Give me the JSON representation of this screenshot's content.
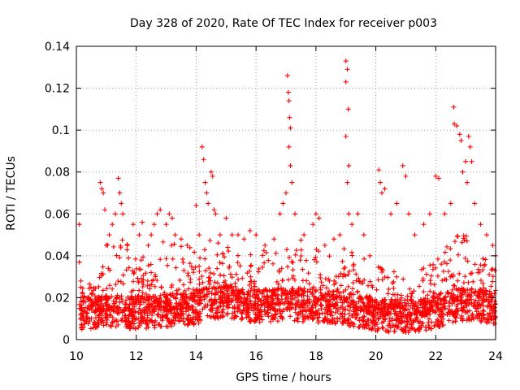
{
  "chart_data": {
    "type": "scatter",
    "title": "Day 328 of 2020, Rate Of TEC Index for receiver p003",
    "xlabel": "GPS time / hours",
    "ylabel": "ROTI / TECUs",
    "xlim": [
      10,
      24
    ],
    "ylim": [
      0,
      0.14
    ],
    "xticks": [
      10,
      12,
      14,
      16,
      18,
      20,
      22,
      24
    ],
    "yticks": [
      0,
      0.02,
      0.04,
      0.06,
      0.08,
      0.1,
      0.12,
      0.14
    ],
    "xtick_labels": [
      "10",
      "12",
      "14",
      "16",
      "18",
      "20",
      "22",
      "24"
    ],
    "ytick_labels": [
      "0",
      "0.02",
      "0.04",
      "0.06",
      "0.08",
      "0.1",
      "0.12",
      "0.14"
    ],
    "grid": true,
    "marker": "+",
    "color": "#ff0000",
    "series": [
      {
        "name": "ROTI",
        "points": [
          [
            10.1,
            0.055
          ],
          [
            10.1,
            0.037
          ],
          [
            10.15,
            0.028
          ],
          [
            10.2,
            0.022
          ],
          [
            10.3,
            0.018
          ],
          [
            10.4,
            0.015
          ],
          [
            10.8,
            0.075
          ],
          [
            10.85,
            0.072
          ],
          [
            10.9,
            0.07
          ],
          [
            10.95,
            0.062
          ],
          [
            11.0,
            0.045
          ],
          [
            11.1,
            0.05
          ],
          [
            11.2,
            0.055
          ],
          [
            11.3,
            0.06
          ],
          [
            11.4,
            0.077
          ],
          [
            11.45,
            0.07
          ],
          [
            11.5,
            0.065
          ],
          [
            11.55,
            0.06
          ],
          [
            11.7,
            0.045
          ],
          [
            11.9,
            0.055
          ],
          [
            12.1,
            0.05
          ],
          [
            12.2,
            0.056
          ],
          [
            12.4,
            0.045
          ],
          [
            12.5,
            0.05
          ],
          [
            12.6,
            0.055
          ],
          [
            12.7,
            0.06
          ],
          [
            12.8,
            0.062
          ],
          [
            13.0,
            0.055
          ],
          [
            13.1,
            0.06
          ],
          [
            13.2,
            0.058
          ],
          [
            13.3,
            0.05
          ],
          [
            13.5,
            0.048
          ],
          [
            13.7,
            0.045
          ],
          [
            14.0,
            0.064
          ],
          [
            14.1,
            0.05
          ],
          [
            14.2,
            0.092
          ],
          [
            14.25,
            0.086
          ],
          [
            14.3,
            0.075
          ],
          [
            14.35,
            0.07
          ],
          [
            14.4,
            0.065
          ],
          [
            14.5,
            0.08
          ],
          [
            14.55,
            0.078
          ],
          [
            14.6,
            0.062
          ],
          [
            14.65,
            0.06
          ],
          [
            14.8,
            0.05
          ],
          [
            15.0,
            0.058
          ],
          [
            15.2,
            0.05
          ],
          [
            15.4,
            0.05
          ],
          [
            15.6,
            0.048
          ],
          [
            15.8,
            0.052
          ],
          [
            16.0,
            0.05
          ],
          [
            16.3,
            0.045
          ],
          [
            16.6,
            0.048
          ],
          [
            16.8,
            0.06
          ],
          [
            16.9,
            0.065
          ],
          [
            17.0,
            0.07
          ],
          [
            17.05,
            0.126
          ],
          [
            17.08,
            0.118
          ],
          [
            17.1,
            0.114
          ],
          [
            17.12,
            0.106
          ],
          [
            17.15,
            0.101
          ],
          [
            17.1,
            0.092
          ],
          [
            17.15,
            0.083
          ],
          [
            17.2,
            0.075
          ],
          [
            17.3,
            0.06
          ],
          [
            17.6,
            0.05
          ],
          [
            17.9,
            0.055
          ],
          [
            18.0,
            0.06
          ],
          [
            18.1,
            0.058
          ],
          [
            18.3,
            0.045
          ],
          [
            18.6,
            0.048
          ],
          [
            18.8,
            0.05
          ],
          [
            19.0,
            0.133
          ],
          [
            19.05,
            0.129
          ],
          [
            19.0,
            0.123
          ],
          [
            19.08,
            0.11
          ],
          [
            19.0,
            0.097
          ],
          [
            19.1,
            0.083
          ],
          [
            19.05,
            0.075
          ],
          [
            19.1,
            0.06
          ],
          [
            19.2,
            0.055
          ],
          [
            19.4,
            0.06
          ],
          [
            19.6,
            0.05
          ],
          [
            19.8,
            0.04
          ],
          [
            20.1,
            0.081
          ],
          [
            20.15,
            0.075
          ],
          [
            20.2,
            0.07
          ],
          [
            20.3,
            0.072
          ],
          [
            20.5,
            0.06
          ],
          [
            20.7,
            0.065
          ],
          [
            20.9,
            0.083
          ],
          [
            21.0,
            0.078
          ],
          [
            21.1,
            0.06
          ],
          [
            21.3,
            0.05
          ],
          [
            21.6,
            0.055
          ],
          [
            21.8,
            0.06
          ],
          [
            22.0,
            0.078
          ],
          [
            22.1,
            0.077
          ],
          [
            22.3,
            0.06
          ],
          [
            22.5,
            0.065
          ],
          [
            22.6,
            0.111
          ],
          [
            22.62,
            0.103
          ],
          [
            22.7,
            0.102
          ],
          [
            22.8,
            0.098
          ],
          [
            22.85,
            0.095
          ],
          [
            22.9,
            0.08
          ],
          [
            23.0,
            0.085
          ],
          [
            23.05,
            0.075
          ],
          [
            23.1,
            0.097
          ],
          [
            23.15,
            0.092
          ],
          [
            23.2,
            0.085
          ],
          [
            23.3,
            0.065
          ],
          [
            23.5,
            0.055
          ],
          [
            23.7,
            0.05
          ],
          [
            23.9,
            0.045
          ],
          [
            24.0,
            0.04
          ]
        ]
      }
    ],
    "dense_band": {
      "description": "dense base cloud of ROTI values across the full time range",
      "x_range": [
        10.1,
        24.0
      ],
      "baseline": [
        [
          10.0,
          0.012
        ],
        [
          11.0,
          0.014
        ],
        [
          12.0,
          0.013
        ],
        [
          13.0,
          0.014
        ],
        [
          14.0,
          0.015
        ],
        [
          14.5,
          0.018
        ],
        [
          15.0,
          0.018
        ],
        [
          16.0,
          0.016
        ],
        [
          17.0,
          0.017
        ],
        [
          18.0,
          0.016
        ],
        [
          19.0,
          0.015
        ],
        [
          20.0,
          0.012
        ],
        [
          21.0,
          0.011
        ],
        [
          22.0,
          0.013
        ],
        [
          22.5,
          0.016
        ],
        [
          23.0,
          0.017
        ],
        [
          24.0,
          0.015
        ]
      ],
      "upper_envelope": [
        [
          10.0,
          0.025
        ],
        [
          10.8,
          0.03
        ],
        [
          11.0,
          0.045
        ],
        [
          11.5,
          0.05
        ],
        [
          12.0,
          0.04
        ],
        [
          12.5,
          0.045
        ],
        [
          13.0,
          0.05
        ],
        [
          13.5,
          0.045
        ],
        [
          14.0,
          0.045
        ],
        [
          14.5,
          0.05
        ],
        [
          15.0,
          0.045
        ],
        [
          16.0,
          0.04
        ],
        [
          17.0,
          0.05
        ],
        [
          18.0,
          0.045
        ],
        [
          19.0,
          0.045
        ],
        [
          20.0,
          0.035
        ],
        [
          20.5,
          0.035
        ],
        [
          21.0,
          0.03
        ],
        [
          21.5,
          0.035
        ],
        [
          22.0,
          0.04
        ],
        [
          22.5,
          0.05
        ],
        [
          23.0,
          0.05
        ],
        [
          23.5,
          0.04
        ],
        [
          24.0,
          0.035
        ]
      ]
    }
  }
}
